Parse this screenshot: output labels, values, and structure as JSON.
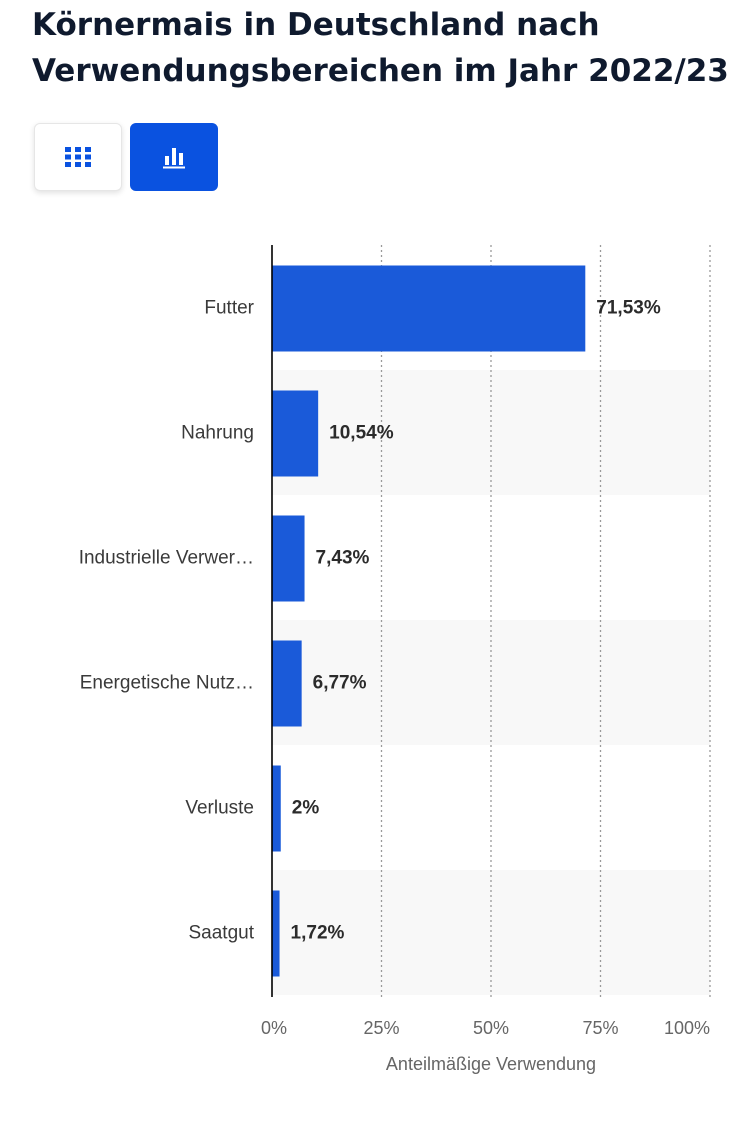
{
  "page": {
    "title": "Körnermais in Deutschland nach Verwendungsbereichen im Jahr 2022/23"
  },
  "view_toggle": {
    "table_icon": "grid-icon",
    "chart_icon": "bar-chart-icon",
    "active": "chart"
  },
  "colors": {
    "bar": "#1a5ad9",
    "accent": "#0a52e0",
    "band": "#f8f8f8",
    "axis": "#000000",
    "grid": "#9a9a9a"
  },
  "chart_data": {
    "type": "bar",
    "orientation": "horizontal",
    "title": "Körnermais in Deutschland nach Verwendungsbereichen im Jahr 2022/23",
    "categories": [
      "Futter",
      "Nahrung",
      "Industrielle Verwer…",
      "Energetische Nutz…",
      "Verluste",
      "Saatgut"
    ],
    "values": [
      71.53,
      10.54,
      7.43,
      6.77,
      2,
      1.72
    ],
    "value_labels": [
      "71,53%",
      "10,54%",
      "7,43%",
      "6,77%",
      "2%",
      "1,72%"
    ],
    "xlim": [
      0,
      100
    ],
    "xticks": [
      0,
      25,
      50,
      75,
      100
    ],
    "xtick_labels": [
      "0%",
      "25%",
      "50%",
      "75%",
      "100%"
    ],
    "xlabel": "Anteilmäßige Verwendung",
    "ylabel": "",
    "grid": "vertical dotted",
    "legend": "none"
  }
}
